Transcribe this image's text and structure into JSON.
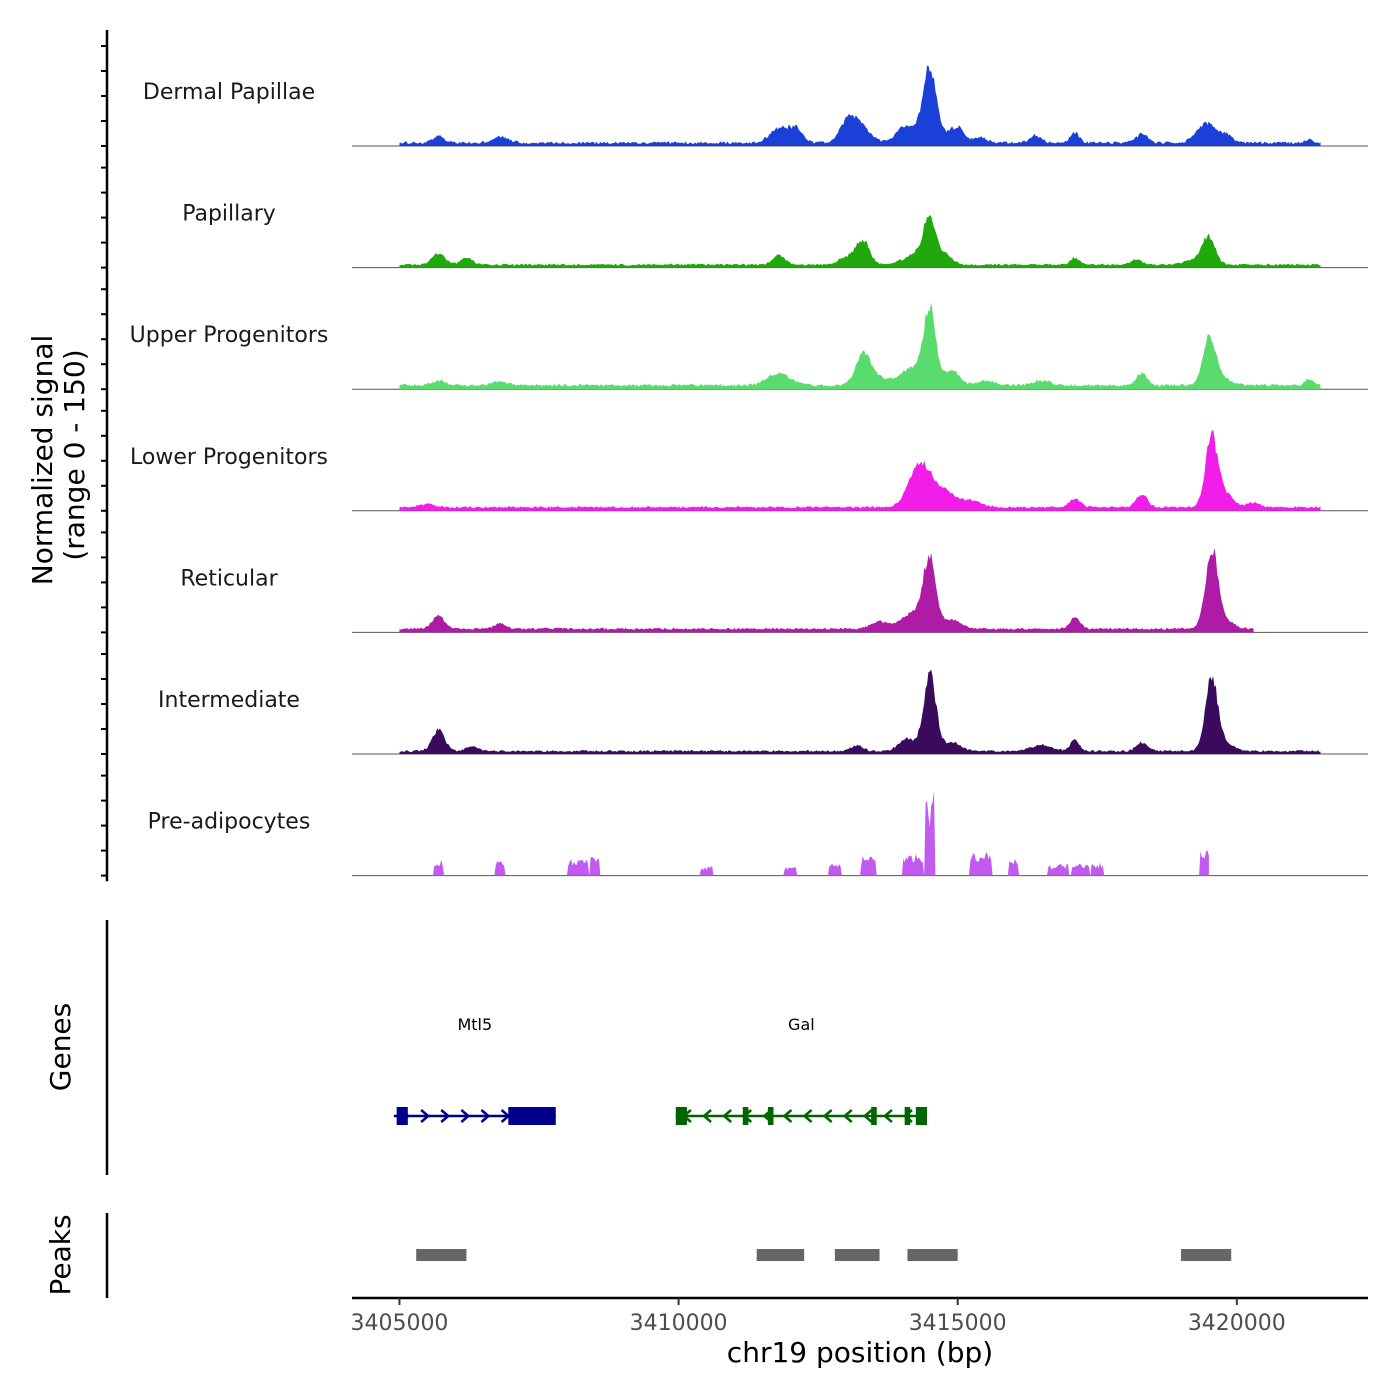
{
  "chart_data": {
    "type": "area",
    "title": "",
    "region": "chr19",
    "xlabel": "chr19 position (bp)",
    "xlim": [
      3404150,
      3422350
    ],
    "x_ticks": [
      3405000,
      3410000,
      3415000,
      3420000
    ],
    "x_tick_labels": [
      "3405000",
      "3410000",
      "3415000",
      "3420000"
    ],
    "signal_ylabel_line1": "Normalized signal",
    "signal_ylabel_line2": "(range 0 - 150)",
    "signal_ylim": [
      0,
      150
    ],
    "genes_ylabel": "Genes",
    "peaks_ylabel": "Peaks",
    "series": [
      {
        "name": "Dermal Papillae",
        "color": "#1B40D8",
        "start": 3405000,
        "end": 3421500,
        "baseline": 3,
        "noise": 4,
        "peaks": [
          [
            3405700,
            12,
            100
          ],
          [
            3406800,
            11,
            140
          ],
          [
            3411800,
            25,
            160
          ],
          [
            3412100,
            22,
            120
          ],
          [
            3413200,
            35,
            180
          ],
          [
            3413000,
            22,
            120
          ],
          [
            3414000,
            15,
            100
          ],
          [
            3414500,
            100,
            110
          ],
          [
            3414400,
            30,
            300
          ],
          [
            3415000,
            22,
            120
          ],
          [
            3415400,
            10,
            110
          ],
          [
            3416400,
            12,
            100
          ],
          [
            3417100,
            18,
            80
          ],
          [
            3418300,
            15,
            100
          ],
          [
            3419300,
            12,
            120
          ],
          [
            3419500,
            30,
            130
          ],
          [
            3419800,
            14,
            110
          ],
          [
            3421300,
            6,
            60
          ]
        ]
      },
      {
        "name": "Papillary",
        "color": "#21A80C",
        "start": 3405000,
        "end": 3421500,
        "baseline": 3,
        "noise": 3,
        "peaks": [
          [
            3405700,
            18,
            120
          ],
          [
            3406200,
            12,
            100
          ],
          [
            3411800,
            16,
            110
          ],
          [
            3413300,
            40,
            120
          ],
          [
            3413000,
            12,
            150
          ],
          [
            3414500,
            70,
            110
          ],
          [
            3414300,
            18,
            250
          ],
          [
            3414800,
            14,
            110
          ],
          [
            3417100,
            12,
            80
          ],
          [
            3418200,
            9,
            90
          ],
          [
            3419500,
            42,
            110
          ],
          [
            3419300,
            10,
            200
          ]
        ]
      },
      {
        "name": "Upper Progenitors",
        "color": "#5ADB6E",
        "start": 3405000,
        "end": 3421500,
        "baseline": 4,
        "noise": 4,
        "peaks": [
          [
            3405700,
            8,
            120
          ],
          [
            3406800,
            6,
            150
          ],
          [
            3411800,
            20,
            200
          ],
          [
            3413300,
            45,
            120
          ],
          [
            3413500,
            15,
            250
          ],
          [
            3414500,
            120,
            110
          ],
          [
            3414200,
            30,
            200
          ],
          [
            3414900,
            25,
            130
          ],
          [
            3415500,
            8,
            150
          ],
          [
            3416500,
            8,
            150
          ],
          [
            3418300,
            20,
            100
          ],
          [
            3419500,
            75,
            110
          ],
          [
            3419700,
            15,
            160
          ],
          [
            3421300,
            10,
            80
          ]
        ]
      },
      {
        "name": "Lower Progenitors",
        "color": "#F01EE8",
        "start": 3405000,
        "end": 3421500,
        "baseline": 4,
        "noise": 3,
        "peaks": [
          [
            3405500,
            6,
            120
          ],
          [
            3414400,
            60,
            200
          ],
          [
            3414200,
            25,
            150
          ],
          [
            3414800,
            20,
            150
          ],
          [
            3415200,
            12,
            200
          ],
          [
            3417100,
            15,
            100
          ],
          [
            3418300,
            22,
            100
          ],
          [
            3419550,
            115,
            110
          ],
          [
            3419800,
            20,
            150
          ],
          [
            3420300,
            8,
            100
          ]
        ]
      },
      {
        "name": "Reticular",
        "color": "#AE1CA6",
        "start": 3405000,
        "end": 3420300,
        "baseline": 4,
        "noise": 3,
        "peaks": [
          [
            3405700,
            22,
            110
          ],
          [
            3406800,
            9,
            100
          ],
          [
            3413600,
            12,
            150
          ],
          [
            3414200,
            28,
            200
          ],
          [
            3414500,
            115,
            110
          ],
          [
            3414900,
            16,
            150
          ],
          [
            3417100,
            18,
            90
          ],
          [
            3419550,
            130,
            110
          ],
          [
            3419800,
            14,
            150
          ]
        ]
      },
      {
        "name": "Intermediate",
        "color": "#3A0A5C",
        "start": 3405000,
        "end": 3421500,
        "baseline": 3,
        "noise": 3,
        "peaks": [
          [
            3405700,
            35,
            110
          ],
          [
            3406300,
            8,
            100
          ],
          [
            3413200,
            10,
            100
          ],
          [
            3414100,
            20,
            150
          ],
          [
            3414500,
            125,
            110
          ],
          [
            3414900,
            15,
            150
          ],
          [
            3416500,
            10,
            200
          ],
          [
            3417100,
            18,
            80
          ],
          [
            3418300,
            14,
            100
          ],
          [
            3419550,
            120,
            110
          ],
          [
            3419800,
            12,
            150
          ]
        ]
      },
      {
        "name": "Pre-adipocytes",
        "color": "#C15BEF",
        "start": 3405200,
        "end": 3419500,
        "baseline": 0,
        "noise": 0,
        "peaks": [
          [
            3405700,
            25,
            90
          ],
          [
            3406800,
            22,
            90
          ],
          [
            3408200,
            25,
            200
          ],
          [
            3408500,
            35,
            100
          ],
          [
            3410500,
            15,
            120
          ],
          [
            3412000,
            15,
            120
          ],
          [
            3412800,
            20,
            120
          ],
          [
            3413400,
            30,
            140
          ],
          [
            3414500,
            130,
            100
          ],
          [
            3414200,
            35,
            180
          ],
          [
            3415300,
            35,
            100
          ],
          [
            3415500,
            40,
            120
          ],
          [
            3416000,
            25,
            100
          ],
          [
            3416800,
            18,
            200
          ],
          [
            3417200,
            20,
            160
          ],
          [
            3417500,
            20,
            120
          ],
          [
            3419450,
            40,
            110
          ]
        ]
      }
    ],
    "genes": [
      {
        "name": "Mtl5",
        "start": 3404900,
        "end": 3407800,
        "strand": "+",
        "color": "#00008B",
        "exons": [
          [
            3404950,
            3405150
          ],
          [
            3406950,
            3407800
          ]
        ]
      },
      {
        "name": "Gal",
        "start": 3409950,
        "end": 3414450,
        "strand": "-",
        "color": "#006400",
        "exons": [
          [
            3409950,
            3410150
          ],
          [
            3411150,
            3411250
          ],
          [
            3411600,
            3411700
          ],
          [
            3413450,
            3413550
          ],
          [
            3414050,
            3414150
          ],
          [
            3414250,
            3414450
          ]
        ]
      }
    ],
    "peaks": [
      [
        3405300,
        3406200
      ],
      [
        3411400,
        3412250
      ],
      [
        3412800,
        3413600
      ],
      [
        3414100,
        3415000
      ],
      [
        3419000,
        3419900
      ]
    ]
  }
}
